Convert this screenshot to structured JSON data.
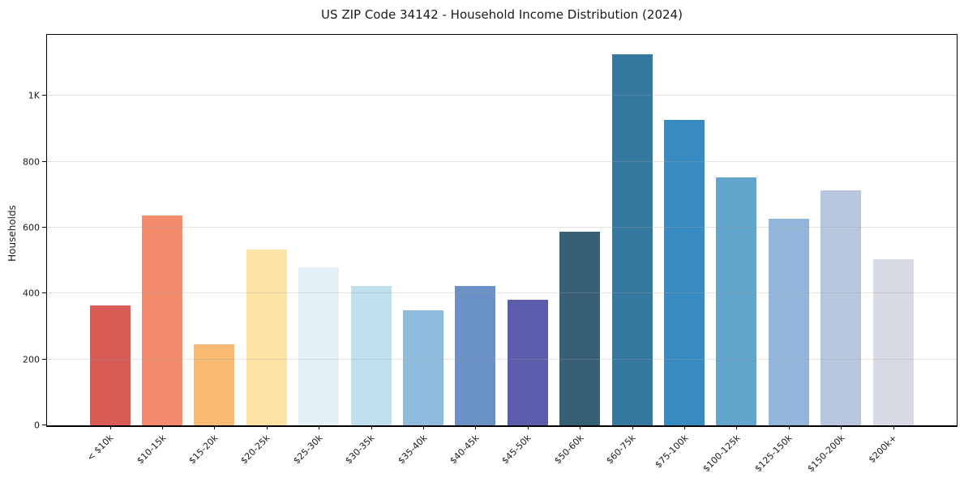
{
  "chart_data": {
    "type": "bar",
    "title": "US ZIP Code 34142 - Household Income Distribution (2024)",
    "xlabel": "",
    "ylabel": "Households",
    "categories": [
      "< $10k",
      "$10-15k",
      "$15-20k",
      "$20-25k",
      "$25-30k",
      "$30-35k",
      "$35-40k",
      "$40-45k",
      "$45-50k",
      "$50-60k",
      "$60-75k",
      "$75-100k",
      "$100-125k",
      "$125-150k",
      "$150-200k",
      "$200k+"
    ],
    "values": [
      363,
      637,
      246,
      534,
      479,
      422,
      348,
      422,
      382,
      588,
      1126,
      927,
      752,
      628,
      713,
      503
    ],
    "bar_colors": [
      "#d65c55",
      "#f28c6c",
      "#f9ba72",
      "#fce3a4",
      "#e4f2f8",
      "#bfe0ec",
      "#8fbcdd",
      "#6b92c6",
      "#5c5dab",
      "#386074",
      "#35789e",
      "#388bc0",
      "#62a6cc",
      "#92b6d9",
      "#b8c7de",
      "#d8dae6"
    ],
    "yticks": [
      {
        "value": 0,
        "label": "0"
      },
      {
        "value": 200,
        "label": "200"
      },
      {
        "value": 400,
        "label": "400"
      },
      {
        "value": 600,
        "label": "600"
      },
      {
        "value": 800,
        "label": "800"
      },
      {
        "value": 1000,
        "label": "1K"
      }
    ],
    "ylim": [
      0,
      1185
    ],
    "grid": "horizontal",
    "legend": "none"
  },
  "colors": {
    "background": "#ffffff",
    "axis": "#000000",
    "grid": "#e6e6e6",
    "text": "#1a1a1a"
  }
}
